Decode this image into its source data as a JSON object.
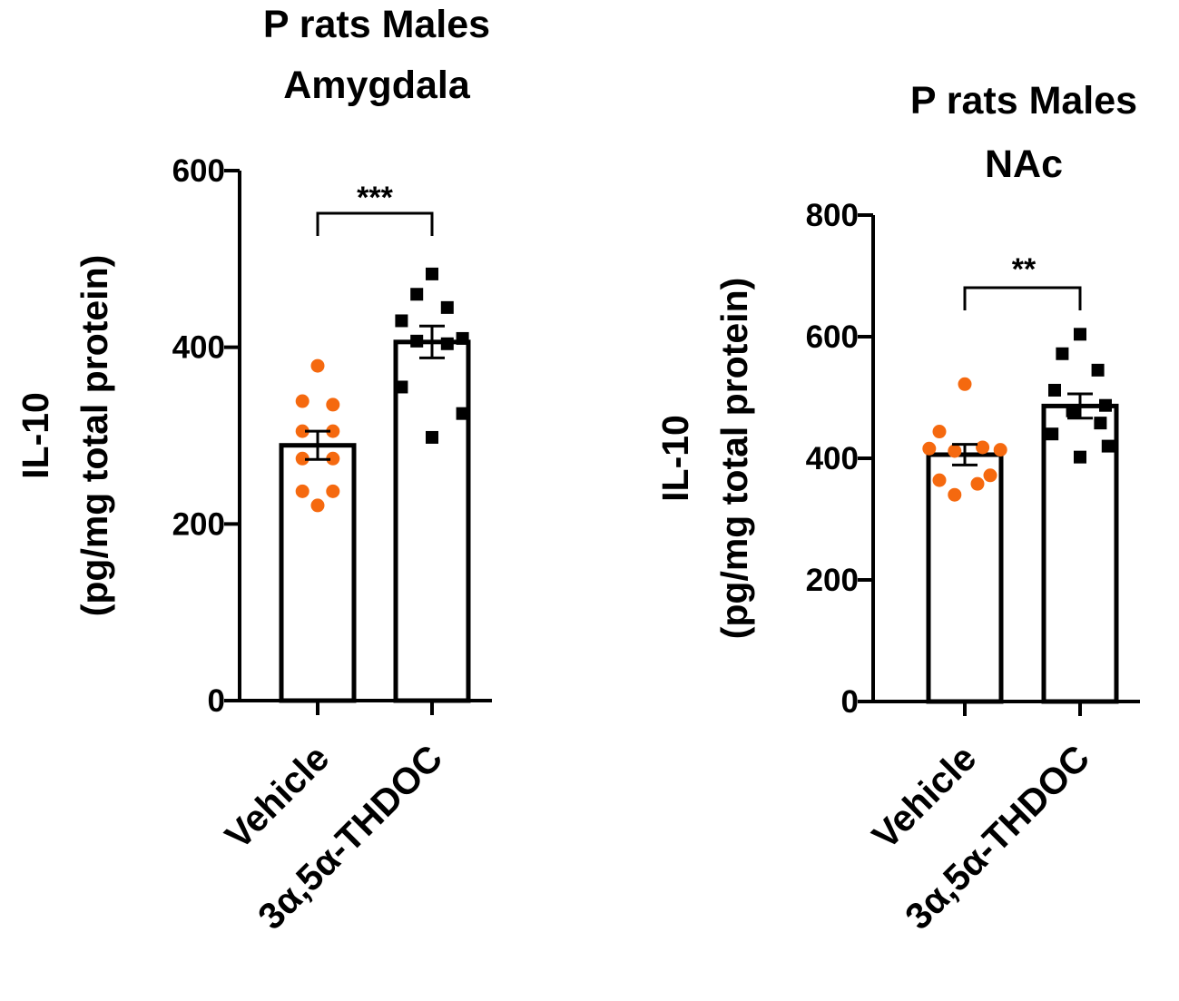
{
  "colors": {
    "vehicle": "#f5690f",
    "thdoc": "#000000",
    "axis": "#000000",
    "bar_fill": "#ffffff"
  },
  "chart_data": [
    {
      "type": "bar",
      "title": [
        "P rats Males",
        "Amygdala"
      ],
      "ylabel": [
        "IL-10",
        "(pg/mg total protein)"
      ],
      "ylim": [
        0,
        600
      ],
      "yticks": [
        0,
        200,
        400,
        600
      ],
      "categories": [
        "Vehicle",
        "3α,5α-THDOC"
      ],
      "means": [
        289,
        406
      ],
      "sem": [
        16,
        18
      ],
      "points": [
        [
          379,
          339,
          335,
          305,
          305,
          274,
          274,
          237,
          237,
          221
        ],
        [
          483,
          460,
          445,
          430,
          410,
          407,
          404,
          355,
          325,
          298
        ]
      ],
      "markers": [
        "circle",
        "square"
      ],
      "significance": "***"
    },
    {
      "type": "bar",
      "title": [
        "P rats Males",
        "NAc"
      ],
      "ylabel": [
        "IL-10",
        "(pg/mg total protein)"
      ],
      "ylim": [
        0,
        800
      ],
      "yticks": [
        0,
        200,
        400,
        600,
        800
      ],
      "categories": [
        "Vehicle",
        "3α,5α-THDOC"
      ],
      "means": [
        406,
        486
      ],
      "sem": [
        17,
        20
      ],
      "points": [
        [
          522,
          444,
          418,
          416,
          414,
          412,
          372,
          364,
          358,
          340
        ],
        [
          604,
          572,
          545,
          512,
          487,
          478,
          458,
          440,
          420,
          402
        ]
      ],
      "markers": [
        "circle",
        "square"
      ],
      "significance": "**"
    }
  ]
}
